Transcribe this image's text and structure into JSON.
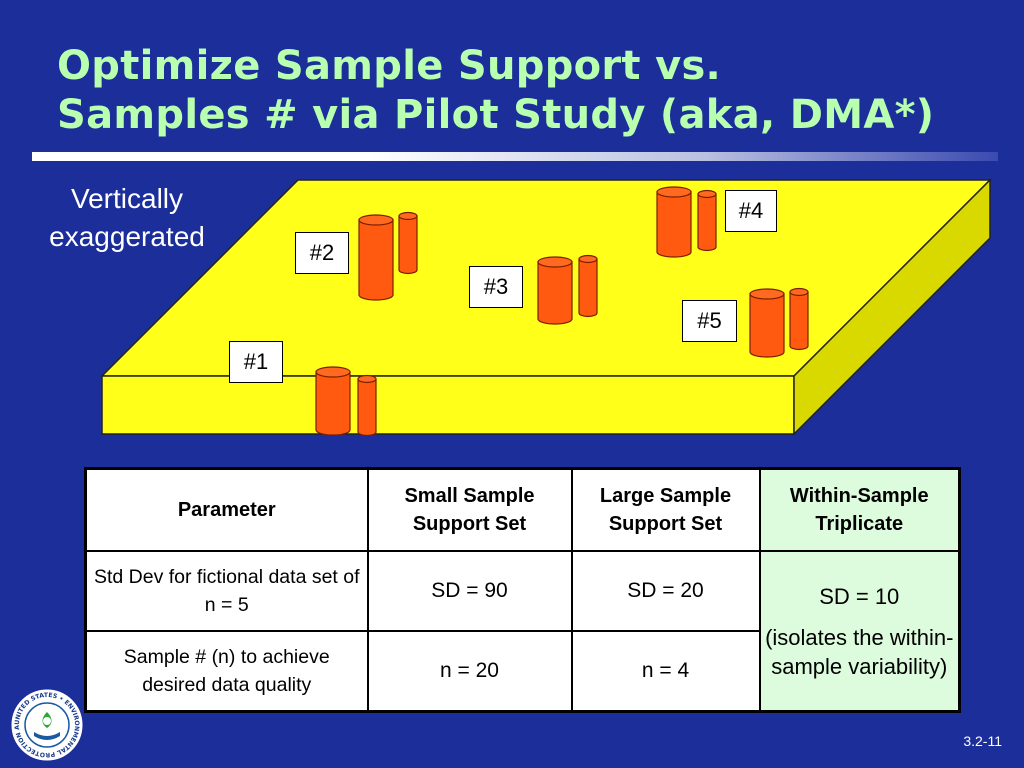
{
  "title": {
    "line1": "Optimize Sample Support vs.",
    "line2": "Samples # via Pilot Study (aka, DMA*)"
  },
  "caption": {
    "line1": "Vertically",
    "line2": "exaggerated"
  },
  "diagram": {
    "labels": [
      "#1",
      "#2",
      "#3",
      "#4",
      "#5"
    ],
    "colors": {
      "slab": "#ffff1a",
      "slab_side": "#dada00",
      "core": "#ff5a10",
      "core_outline": "#8a2000"
    }
  },
  "table": {
    "headers": [
      "Parameter",
      "Small Sample Support Set",
      "Large Sample Support Set",
      "Within-Sample Triplicate"
    ],
    "rows": [
      {
        "parameter": "Std Dev for fictional data set of n = 5",
        "small": "SD = 90",
        "large": "SD = 20"
      },
      {
        "parameter": "Sample # (n) to achieve desired data quality",
        "small": "n = 20",
        "large": "n = 4"
      }
    ],
    "triplicate": {
      "value": "SD = 10",
      "note": "(isolates the within-sample variability)"
    }
  },
  "seal": {
    "text": "UNITED STATES • ENVIRONMENTAL PROTECTION AGENCY"
  },
  "slide_number": "3.2-11",
  "colors": {
    "background": "#1b2e9a",
    "title": "#b8ffb0",
    "highlight_column": "#ddfcdd"
  }
}
